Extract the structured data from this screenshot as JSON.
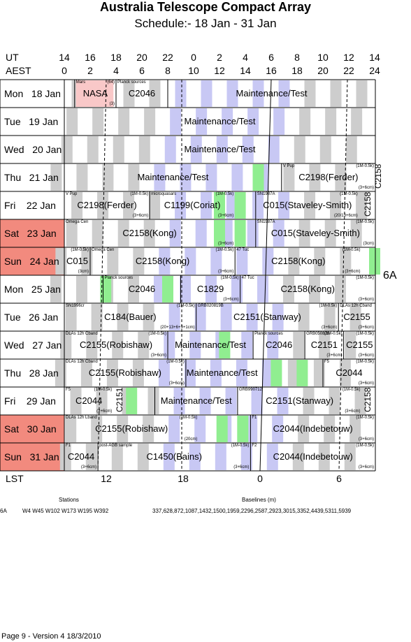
{
  "title": "Australia Telescope Compact Array",
  "subtitle": "Schedule:- 18 Jan - 31 Jan",
  "axis": {
    "ut_label": "UT",
    "aest_label": "AEST",
    "ut_ticks": [
      "14",
      "16",
      "18",
      "20",
      "22",
      "0",
      "2",
      "4",
      "6",
      "8",
      "10",
      "12",
      "14"
    ],
    "aest_ticks": [
      "0",
      "2",
      "4",
      "6",
      "8",
      "10",
      "12",
      "14",
      "16",
      "18",
      "20",
      "22",
      "24"
    ],
    "lst_label": "LST",
    "lst_ticks": [
      "12",
      "18",
      "0",
      "6"
    ]
  },
  "rows": [
    {
      "label": "Mon   18 Jan",
      "weekend": false
    },
    {
      "label": "Tue   19 Jan",
      "weekend": false
    },
    {
      "label": "Wed   20 Jan",
      "weekend": false
    },
    {
      "label": "Thu   21 Jan",
      "weekend": false
    },
    {
      "label": "Fri    22 Jan",
      "weekend": false
    },
    {
      "label": "Sat   23 Jan",
      "weekend": true
    },
    {
      "label": "Sun   24 Jan",
      "weekend": true
    },
    {
      "label": "Mon   25 Jan",
      "weekend": false
    },
    {
      "label": "Tue   26 Jan",
      "weekend": false
    },
    {
      "label": "Wed   27 Jan",
      "weekend": false
    },
    {
      "label": "Thu   28 Jan",
      "weekend": false
    },
    {
      "label": "Fri    29 Jan",
      "weekend": false
    },
    {
      "label": "Sat   30 Jan",
      "weekend": true
    },
    {
      "label": "Sun   31 Jan",
      "weekend": true
    }
  ],
  "projects": [
    {
      "row": 0,
      "a": 0.4,
      "b": 2,
      "text": "NASA",
      "src": "Mars",
      "tag": "(64)",
      "tag2": "(3)"
    },
    {
      "row": 0,
      "a": 2,
      "b": 4,
      "text": "C2046",
      "src": "Planck sources"
    },
    {
      "row": 0,
      "a": 4,
      "b": 12.1,
      "text": "Maintenance/Test"
    },
    {
      "row": 1,
      "a": 0,
      "b": 12.1,
      "text": "Maintenance/Test"
    },
    {
      "row": 2,
      "a": 0,
      "b": 12.1,
      "text": "Maintenance/Test"
    },
    {
      "row": 3,
      "a": 0,
      "b": 8.4,
      "text": "Maintenance/Test"
    },
    {
      "row": 3,
      "a": 8.4,
      "b": 12.1,
      "text": "C2198(Ferder)",
      "src": "V Pup",
      "tag": "(1M-0.5k)",
      "tag2": "(3+6cm)"
    },
    {
      "row": 4,
      "a": 0,
      "b": 3.3,
      "text": "C2198(Ferder)",
      "src": "V Pup",
      "tag": "(1M-0.5k)",
      "tag2": "(3+6cm)"
    },
    {
      "row": 4,
      "a": 3.3,
      "b": 6.6,
      "text": "C1199(Coriat)",
      "src": "microquasars",
      "tag": "(1M-0.5k)",
      "tag2": "(3+6cm)"
    },
    {
      "row": 4,
      "a": 7.4,
      "b": 11.4,
      "text": "C015(Staveley-Smith)",
      "src": "SN1987A",
      "tag": "(1M-0.5k)",
      "tag2": "(20/13+6cm)"
    },
    {
      "row": 5,
      "a": 0,
      "b": 6.6,
      "text": "C2158(Kong)",
      "src": "Omega Cen",
      "tag2": "(3+6cm)"
    },
    {
      "row": 5,
      "a": 7.4,
      "b": 12.1,
      "text": "C015(Staveley-Smith)",
      "src": "SN1987A",
      "tag": "(1M-0.5k)",
      "tag2": "(3cm)"
    },
    {
      "row": 6,
      "a": 0,
      "b": 1,
      "text": "C015",
      "tag": "(1M-0.5k)",
      "tag2": "(3cm)"
    },
    {
      "row": 6,
      "a": 1,
      "b": 6.6,
      "text": "C2158(Kong)",
      "src": "Omega Cen",
      "tag": "(1M-0.5k)",
      "tag2": "(3+6cm)"
    },
    {
      "row": 6,
      "a": 6.6,
      "b": 11.5,
      "text": "C2158(Kong)",
      "src": "47 Tuc",
      "tag": "(1M-0.5k)",
      "tag2": "(3+6cm)"
    },
    {
      "row": 7,
      "a": 1.5,
      "b": 4.5,
      "text": "C2046",
      "src": "Planck sources"
    },
    {
      "row": 7,
      "a": 4.5,
      "b": 6.8,
      "text": "C1829",
      "tag": "(1M-0.5k)",
      "tag2": "(3+6cm)"
    },
    {
      "row": 7,
      "a": 6.8,
      "b": 12.1,
      "text": "C2158(Kong)",
      "src": "47 Tuc",
      "tag": "(1M-0.5k)",
      "tag2": "(3+6cm)"
    },
    {
      "row": 8,
      "a": 0,
      "b": 5.1,
      "text": "C184(Bauer)",
      "src": "SN1996cr",
      "tag": "(1M-0.5k)",
      "tag2": "(20+13+6+3+1cm)"
    },
    {
      "row": 8,
      "a": 5.1,
      "b": 10.6,
      "text": "C2151(Stanway)",
      "src": "GRB020819B",
      "tag": "(1M-0.5k)",
      "tag2": "(3+6cm)"
    },
    {
      "row": 8,
      "a": 10.6,
      "b": 12.1,
      "text": "C2155",
      "src": "DLAs 12h Cband",
      "tag2": "(3+6cm)"
    },
    {
      "row": 9,
      "a": 0,
      "b": 4,
      "text": "C2155(Robishaw)",
      "src": "DLAs 12h Cband",
      "tag": "(1M-0.5k)",
      "tag2": "(3+6cm)"
    },
    {
      "row": 9,
      "a": 4,
      "b": 7.3,
      "text": "Maintenance/Test"
    },
    {
      "row": 9,
      "a": 7.3,
      "b": 9.3,
      "text": "C2046",
      "src": "Planck sources"
    },
    {
      "row": 9,
      "a": 9.3,
      "b": 10.8,
      "text": "C2151",
      "src": "GRB050826",
      "tag": "(1M-0.5k)",
      "tag2": "(3+6cm)"
    },
    {
      "row": 9,
      "a": 10.8,
      "b": 12.1,
      "text": "C2155",
      "tag": "(1M-0.5k)",
      "tag2": "(3+6cm)"
    },
    {
      "row": 10,
      "a": 0,
      "b": 4.7,
      "text": "C2155(Robishaw)",
      "src": "DLAs 12h Cband",
      "tag": "(1M-0.5k)",
      "tag2": "(3+6cm)"
    },
    {
      "row": 10,
      "a": 4.7,
      "b": 7.5,
      "text": "Maintenance/Test"
    },
    {
      "row": 10,
      "a": 10,
      "b": 12.1,
      "text": "C2044",
      "src": "F5",
      "tag": "(1M-0.5k)",
      "tag2": "(3+6cm)"
    },
    {
      "row": 11,
      "a": 0,
      "b": 1.9,
      "text": "C2044",
      "src": "F5",
      "tag": "(1M-0.5k)",
      "tag2": "(3+6cm)"
    },
    {
      "row": 11,
      "a": 3.5,
      "b": 6.7,
      "text": "Maintenance/Test"
    },
    {
      "row": 11,
      "a": 6.7,
      "b": 11.5,
      "text": "C2151(Stanway)",
      "src": "GRB990712",
      "tag": "(1M-0.5k)",
      "tag2": "(3+6cm)"
    },
    {
      "row": 12,
      "a": 0,
      "b": 5.2,
      "text": "C2155(Robishaw)",
      "src": "DLAs 12h Lband",
      "tag": "(1M-0.5k)",
      "tag2": "(20cm)"
    },
    {
      "row": 12,
      "a": 7.2,
      "b": 12.1,
      "text": "C2044(Indebetouw)",
      "src": "F1",
      "tag": "(1M-0.5k)",
      "tag2": "(3+6cm)"
    },
    {
      "row": 13,
      "a": 0,
      "b": 1.3,
      "text": "C2044",
      "src": "F1",
      "tag2": "(3+6cm)"
    },
    {
      "row": 13,
      "a": 1.3,
      "b": 7.2,
      "text": "C1450(Bains)",
      "src": "post-AGB sample",
      "tag": "(1M-0.5k)",
      "tag2": "(3+6cm)"
    },
    {
      "row": 13,
      "a": 7.2,
      "b": 12.1,
      "text": "C2044(Indebetouw)",
      "src": "F2",
      "tag": "(1M-0.5k)",
      "tag2": "(3+6cm)"
    }
  ],
  "vertical_projects": [
    {
      "row": 3,
      "x": 12,
      "text": "C2158",
      "note": "(1M-0.5k)"
    },
    {
      "row": 4,
      "x": 11.6,
      "text": "C2158"
    },
    {
      "row": 11,
      "x": 2,
      "text": "C2151"
    },
    {
      "row": 11,
      "x": 11.6,
      "text": "C2158"
    }
  ],
  "config": "6A",
  "stations_label": "Stations",
  "baselines_label": "Baselines (m)",
  "config_row_label": "6A",
  "stations": "W4 W45 W102 W173 W195 W392",
  "baselines": "337,628,872,1087,1432,1500,1959,2296,2587,2923,3015,3352,4439,5311,5939",
  "footer": "Page 9 - Version 4  18/3/2010",
  "colors": {
    "weekend": "#f28a7e",
    "grey": "#cdcdcd",
    "blue": "#c8c8f4",
    "green": "#90ee90",
    "pink": "#f9c8c8"
  }
}
